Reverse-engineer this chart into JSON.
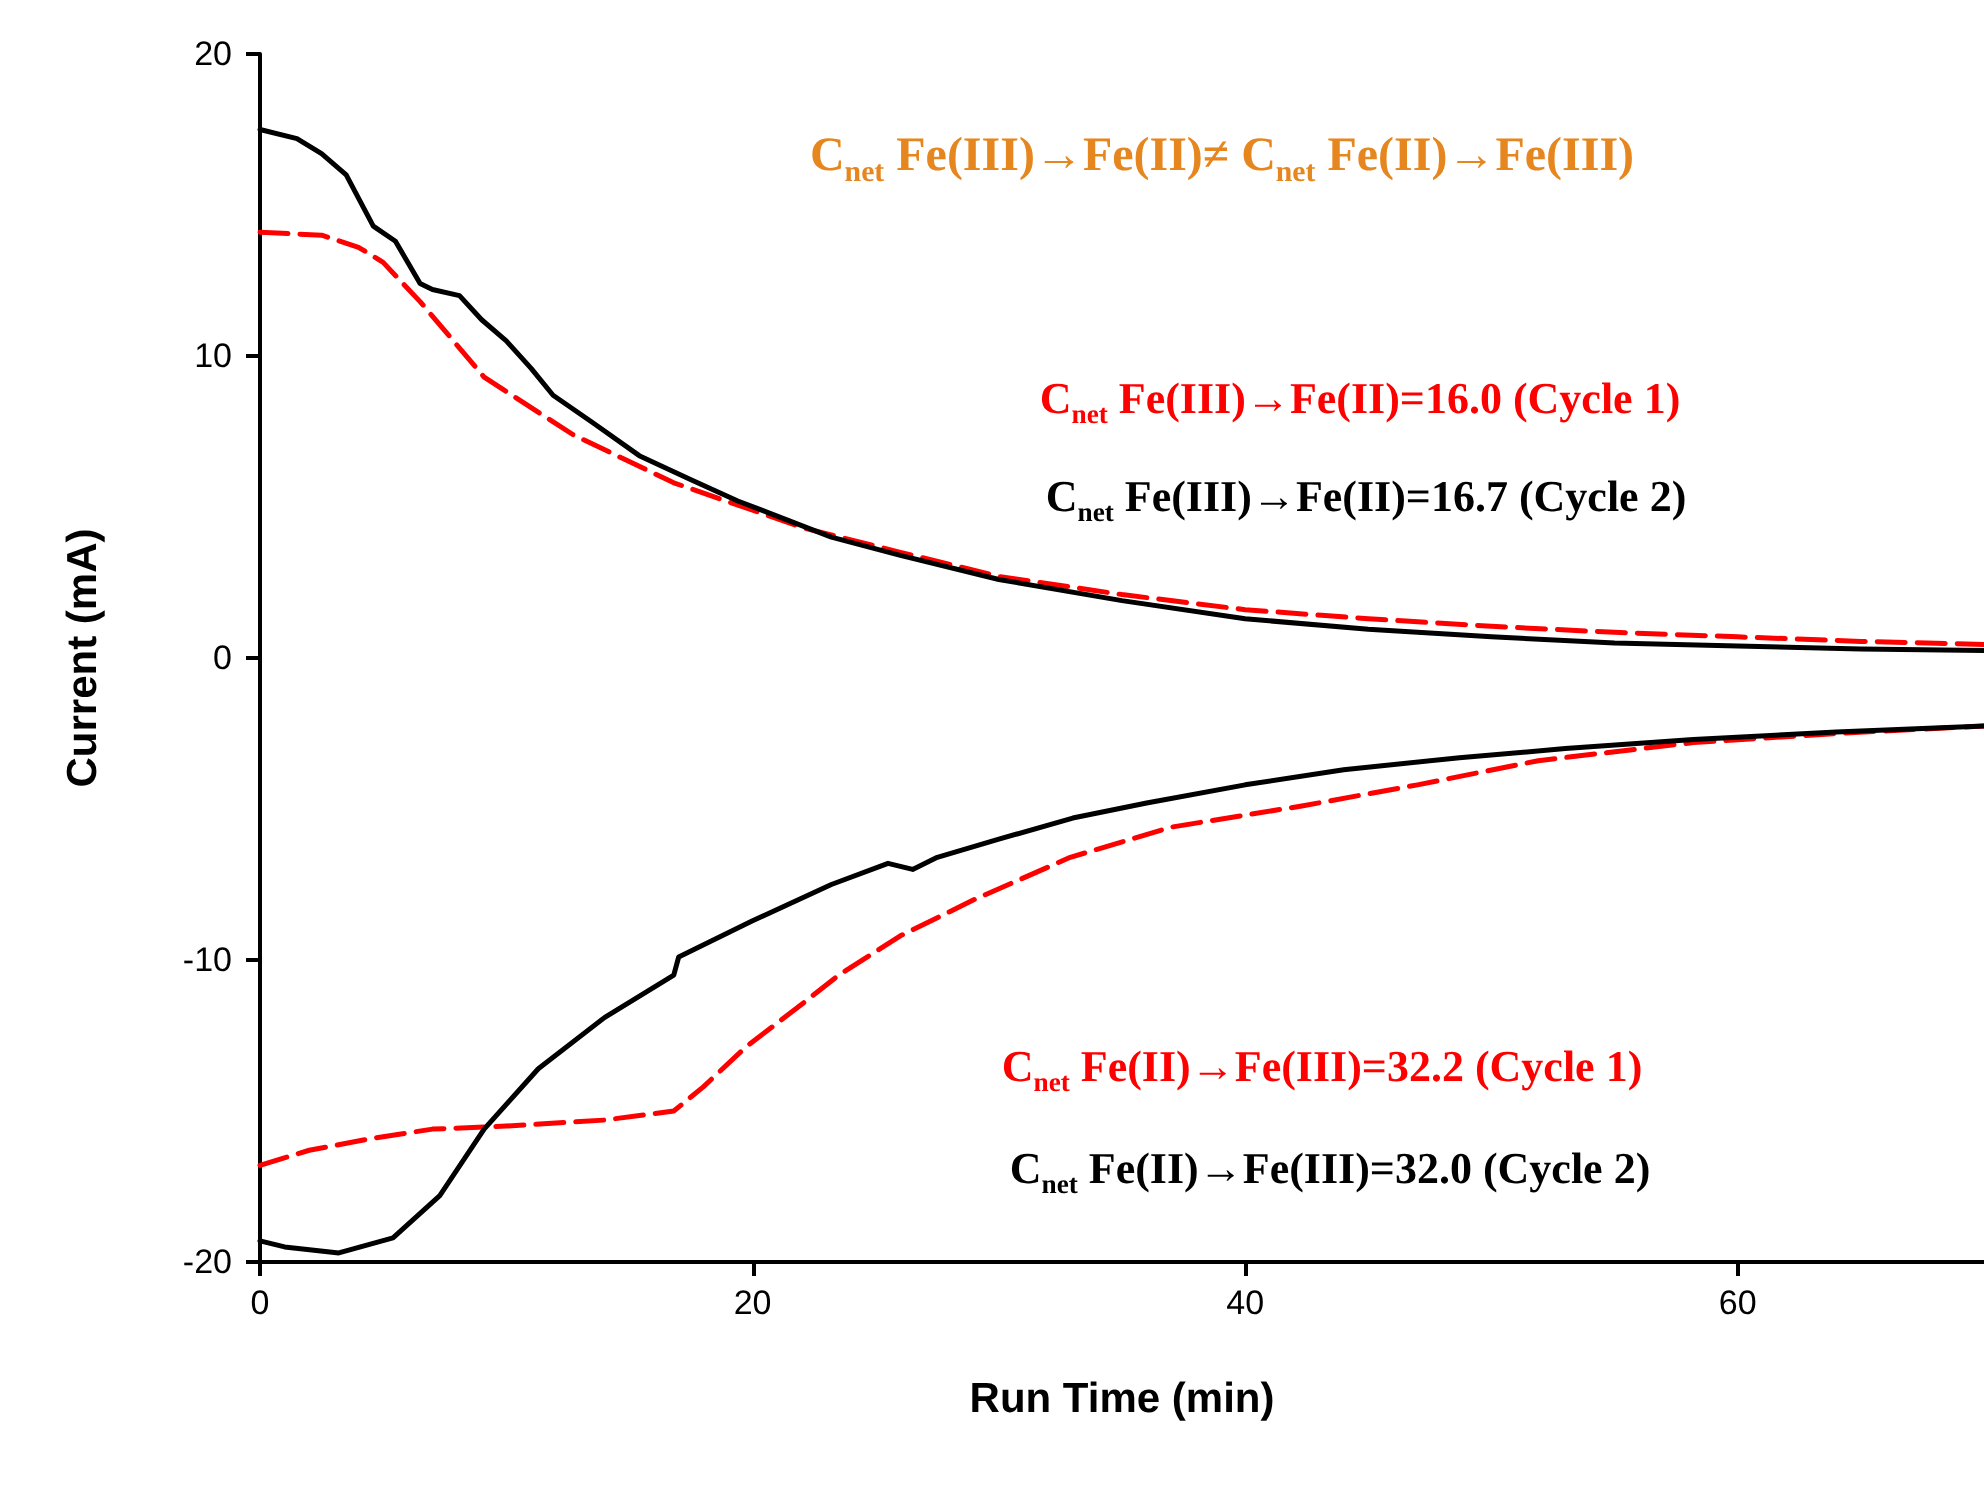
{
  "chart_data": {
    "type": "line",
    "xlabel": "Run Time (min)",
    "ylabel": "Current (mA)",
    "xlim": [
      0,
      70
    ],
    "xticks": [
      0,
      20,
      40,
      60
    ],
    "ylim": [
      -20,
      20
    ],
    "yticks": [
      -20,
      -10,
      0,
      10,
      20
    ],
    "marker": "none",
    "annotations": [
      "C$_{net}$ Fe(III)→Fe(II)≠ C$_{net}$ Fe(II)→Fe(III)",
      "C$_{net}$ Fe(III)→Fe(II)=16.0 (Cycle 1)",
      "C$_{net}$ Fe(III)→Fe(II)=16.7 (Cycle 2)",
      "C$_{net}$ Fe(II)→Fe(III)=32.2 (Cycle 1)",
      "C$_{net}$ Fe(II)→Fe(III)=32.0 (Cycle 2)"
    ],
    "series": [
      {
        "color": "#ff0000",
        "line_style": "dashed",
        "x": [
          0,
          2.5,
          4,
          5,
          6.5,
          9.1,
          12.7,
          16.8,
          22.1,
          26,
          30,
          35,
          40,
          45,
          50,
          55,
          60,
          65,
          70
        ],
        "values": [
          14.1,
          14.0,
          13.6,
          13.1,
          11.8,
          9.3,
          7.4,
          5.8,
          4.3,
          3.5,
          2.7,
          2.1,
          1.6,
          1.3,
          1.05,
          0.85,
          0.7,
          0.55,
          0.45
        ]
      },
      {
        "color": "#000000",
        "line_style": "solid",
        "x": [
          0,
          1.5,
          2.5,
          3.5,
          4.6,
          5.5,
          6.5,
          7,
          8.1,
          9,
          10,
          11,
          11.9,
          13.5,
          15.4,
          17.5,
          19.4,
          21,
          23.2,
          26,
          30,
          35,
          40,
          45,
          50,
          55,
          60,
          65,
          70
        ],
        "values": [
          17.5,
          17.2,
          16.7,
          16.0,
          14.3,
          13.8,
          12.4,
          12.2,
          12.0,
          11.2,
          10.5,
          9.6,
          8.7,
          7.8,
          6.7,
          5.9,
          5.2,
          4.7,
          4.0,
          3.4,
          2.6,
          1.9,
          1.3,
          0.95,
          0.7,
          0.5,
          0.4,
          0.3,
          0.25
        ]
      },
      {
        "color": "#ff0000",
        "line_style": "dashed",
        "x": [
          0,
          2,
          4.6,
          7,
          10,
          14,
          16.8,
          18,
          19.7,
          22.1,
          23.5,
          26,
          29,
          32.9,
          37,
          42.3,
          47,
          51.9,
          58.2,
          64,
          70
        ],
        "values": [
          -16.8,
          -16.3,
          -15.9,
          -15.6,
          -15.5,
          -15.3,
          -15.0,
          -14.2,
          -12.9,
          -11.4,
          -10.5,
          -9.2,
          -8.0,
          -6.6,
          -5.6,
          -4.9,
          -4.2,
          -3.4,
          -2.8,
          -2.5,
          -2.25
        ]
      },
      {
        "color": "#000000",
        "line_style": "solid",
        "x": [
          0,
          1,
          3.2,
          5.4,
          7.3,
          9.1,
          11.3,
          14,
          16.8,
          17,
          20,
          23.2,
          25.5,
          26.5,
          27.5,
          30,
          33,
          36,
          40,
          44,
          48.7,
          53,
          58.2,
          64,
          70
        ],
        "values": [
          -19.3,
          -19.5,
          -19.7,
          -19.2,
          -17.8,
          -15.6,
          -13.6,
          -11.9,
          -10.5,
          -9.9,
          -8.7,
          -7.5,
          -6.8,
          -7.0,
          -6.6,
          -6.0,
          -5.3,
          -4.8,
          -4.2,
          -3.7,
          -3.3,
          -3.0,
          -2.7,
          -2.45,
          -2.25
        ]
      }
    ]
  }
}
